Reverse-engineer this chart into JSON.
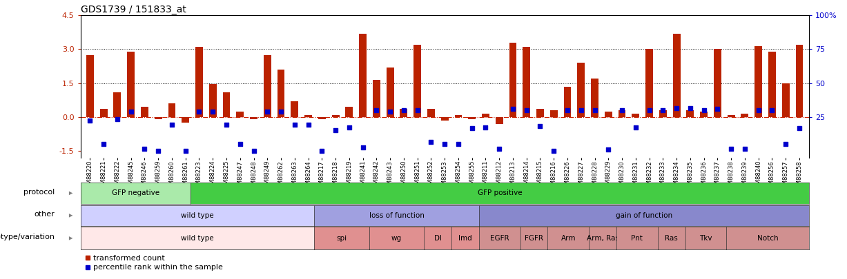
{
  "title": "GDS1739 / 151833_at",
  "ylim": [
    -1.8,
    4.5
  ],
  "yticks": [
    -1.5,
    0.0,
    1.5,
    3.0,
    4.5
  ],
  "right_ytick_pcts": [
    25,
    50,
    75,
    100
  ],
  "right_ylabels": [
    "25",
    "50",
    "75",
    "100%"
  ],
  "samples": [
    "GSM88220",
    "GSM88221",
    "GSM88222",
    "GSM88245",
    "GSM88246",
    "GSM88259",
    "GSM88260",
    "GSM88261",
    "GSM88223",
    "GSM88224",
    "GSM88225",
    "GSM88247",
    "GSM88248",
    "GSM88249",
    "GSM88262",
    "GSM88263",
    "GSM88264",
    "GSM88217",
    "GSM88218",
    "GSM88219",
    "GSM88241",
    "GSM88242",
    "GSM88243",
    "GSM88250",
    "GSM88251",
    "GSM88252",
    "GSM88253",
    "GSM88254",
    "GSM88255",
    "GSM88211",
    "GSM88212",
    "GSM88213",
    "GSM88214",
    "GSM88215",
    "GSM88216",
    "GSM88226",
    "GSM88227",
    "GSM88228",
    "GSM88229",
    "GSM88230",
    "GSM88231",
    "GSM88232",
    "GSM88233",
    "GSM88234",
    "GSM88235",
    "GSM88236",
    "GSM88237",
    "GSM88238",
    "GSM88239",
    "GSM88240",
    "GSM88256",
    "GSM88257",
    "GSM88258"
  ],
  "bar_values": [
    2.75,
    0.35,
    1.1,
    2.9,
    0.45,
    -0.1,
    0.6,
    -0.25,
    3.1,
    1.45,
    1.1,
    0.25,
    -0.1,
    2.75,
    2.1,
    0.7,
    0.1,
    -0.1,
    0.1,
    0.45,
    3.7,
    1.65,
    2.2,
    0.35,
    3.2,
    0.35,
    -0.15,
    0.1,
    -0.1,
    0.15,
    -0.3,
    3.3,
    3.1,
    0.35,
    0.3,
    1.35,
    2.4,
    1.7,
    0.25,
    0.3,
    0.15,
    3.0,
    0.3,
    3.7,
    0.3,
    0.25,
    3.0,
    0.1,
    0.15,
    3.15,
    2.9,
    1.5,
    3.2
  ],
  "dot_values": [
    -0.15,
    -1.2,
    -0.1,
    0.25,
    -1.4,
    -1.5,
    -0.35,
    -1.5,
    0.25,
    0.25,
    -0.35,
    -1.2,
    -1.5,
    0.25,
    0.25,
    -0.35,
    -0.35,
    -1.5,
    -0.6,
    -0.45,
    -1.35,
    0.3,
    0.25,
    0.3,
    0.3,
    -1.1,
    -1.2,
    -1.2,
    -0.5,
    -0.45,
    -1.4,
    0.35,
    0.3,
    -0.4,
    -1.5,
    0.3,
    0.3,
    0.3,
    -1.45,
    0.3,
    -0.45,
    0.3,
    0.3,
    0.4,
    0.4,
    0.3,
    0.35,
    -1.4,
    -1.4,
    0.3,
    0.3,
    -1.2,
    -0.5
  ],
  "protocol_groups": [
    {
      "label": "GFP negative",
      "start": 0,
      "end": 8,
      "color": "#aaeaaa"
    },
    {
      "label": "GFP positive",
      "start": 8,
      "end": 53,
      "color": "#44cc44"
    }
  ],
  "other_groups": [
    {
      "label": "wild type",
      "start": 0,
      "end": 17,
      "color": "#d0d0ff"
    },
    {
      "label": "loss of function",
      "start": 17,
      "end": 29,
      "color": "#a0a0e0"
    },
    {
      "label": "gain of function",
      "start": 29,
      "end": 53,
      "color": "#8888cc"
    }
  ],
  "genotype_groups": [
    {
      "label": "wild type",
      "start": 0,
      "end": 17,
      "color": "#ffe8e8"
    },
    {
      "label": "spi",
      "start": 17,
      "end": 21,
      "color": "#e09090"
    },
    {
      "label": "wg",
      "start": 21,
      "end": 25,
      "color": "#e09090"
    },
    {
      "label": "Dl",
      "start": 25,
      "end": 27,
      "color": "#e09090"
    },
    {
      "label": "Imd",
      "start": 27,
      "end": 29,
      "color": "#e09090"
    },
    {
      "label": "EGFR",
      "start": 29,
      "end": 32,
      "color": "#d09090"
    },
    {
      "label": "FGFR",
      "start": 32,
      "end": 34,
      "color": "#d09090"
    },
    {
      "label": "Arm",
      "start": 34,
      "end": 37,
      "color": "#d09090"
    },
    {
      "label": "Arm, Ras",
      "start": 37,
      "end": 39,
      "color": "#d09090"
    },
    {
      "label": "Pnt",
      "start": 39,
      "end": 42,
      "color": "#d09090"
    },
    {
      "label": "Ras",
      "start": 42,
      "end": 44,
      "color": "#d09090"
    },
    {
      "label": "Tkv",
      "start": 44,
      "end": 47,
      "color": "#d09090"
    },
    {
      "label": "Notch",
      "start": 47,
      "end": 53,
      "color": "#d09090"
    }
  ],
  "bar_color": "#bb2200",
  "dot_color": "#0000cc",
  "zero_line_color": "#cc2200",
  "grid_color": "#222222",
  "right_axis_color": "#0000cc",
  "title_fontsize": 10,
  "tick_fontsize": 6,
  "axis_fontsize": 8,
  "annotation_fontsize": 8,
  "legend_fontsize": 8
}
